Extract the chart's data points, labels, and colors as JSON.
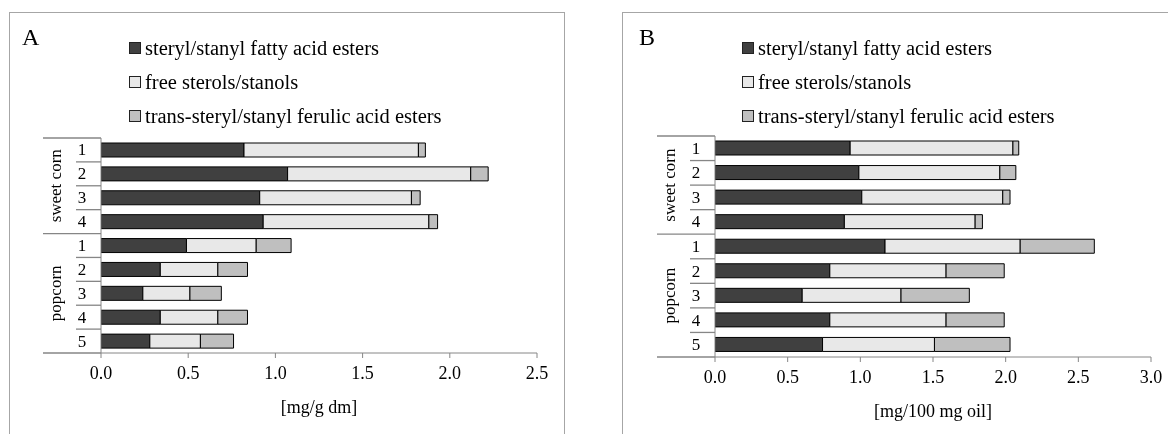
{
  "chart_data": [
    {
      "type": "bar",
      "orientation": "horizontal",
      "stacked": true,
      "title": "A",
      "xlabel": "[mg/g dm]",
      "categories": [
        "1",
        "2",
        "3",
        "4",
        "1",
        "2",
        "3",
        "4",
        "5"
      ],
      "annotations": [
        "sweet corn",
        "popcorn"
      ],
      "series": [
        {
          "name": "steryl/stanyl fatty acid esters",
          "color": "#404040",
          "values": [
            0.82,
            1.07,
            0.91,
            0.93,
            0.49,
            0.34,
            0.24,
            0.34,
            0.28
          ]
        },
        {
          "name": "free sterols/stanols",
          "color": "#e8e8e8",
          "values": [
            1.0,
            1.05,
            0.87,
            0.95,
            0.4,
            0.33,
            0.27,
            0.33,
            0.29
          ]
        },
        {
          "name": "trans-steryl/stanyl ferulic acid esters",
          "color": "#bfbfbf",
          "values": [
            0.04,
            0.1,
            0.05,
            0.05,
            0.2,
            0.17,
            0.18,
            0.17,
            0.19
          ]
        }
      ],
      "xlim": [
        0,
        2.5
      ],
      "xticks": [
        {
          "value": 0,
          "label": "0.0"
        },
        0.5,
        {
          "value": 1,
          "label": "1.0"
        },
        1.5,
        {
          "value": 2,
          "label": "2.0"
        },
        2.5
      ],
      "legend": "top"
    },
    {
      "type": "bar",
      "orientation": "horizontal",
      "stacked": true,
      "title": "B",
      "xlabel": "[mg/100 mg oil]",
      "categories": [
        "1",
        "2",
        "3",
        "4",
        "1",
        "2",
        "3",
        "4",
        "5"
      ],
      "annotations": [
        "sweet corn",
        "popcorn"
      ],
      "series": [
        {
          "name": "steryl/stanyl fatty acid esters",
          "color": "#404040",
          "values": [
            0.93,
            0.99,
            1.01,
            0.89,
            1.17,
            0.79,
            0.6,
            0.79,
            0.74
          ]
        },
        {
          "name": "free sterols/stanols",
          "color": "#e8e8e8",
          "values": [
            1.12,
            0.97,
            0.97,
            0.9,
            0.93,
            0.8,
            0.68,
            0.8,
            0.77
          ]
        },
        {
          "name": "trans-steryl/stanyl ferulic acid esters",
          "color": "#bfbfbf",
          "values": [
            0.04,
            0.11,
            0.05,
            0.05,
            0.51,
            0.4,
            0.47,
            0.4,
            0.52
          ]
        }
      ],
      "xlim": [
        0,
        3.0
      ],
      "xticks": [
        {
          "value": 0,
          "label": "0.0"
        },
        0.5,
        {
          "value": 1,
          "label": "1.0"
        },
        1.5,
        {
          "value": 2,
          "label": "2.0"
        },
        2.5,
        {
          "value": 3,
          "label": "3.0"
        }
      ],
      "legend": "top"
    }
  ]
}
